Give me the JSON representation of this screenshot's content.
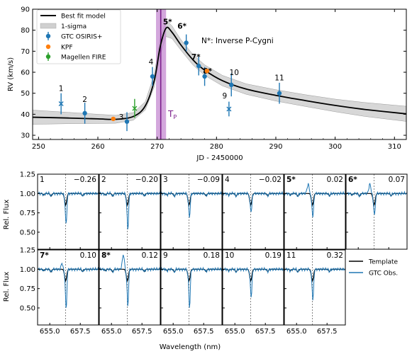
{
  "colors": {
    "model": "#000000",
    "band": "#d0d0d0",
    "gtc": "#1f77b4",
    "kpf": "#ff7f0e",
    "fire": "#2ca02c",
    "tp_band": "#c48ad0",
    "tp_line": "#7a1d8a",
    "template": "#000000"
  },
  "chart_data": [
    {
      "type": "scatter",
      "ylabel": "RV (km/s)",
      "xlabel": "JD - 2450000",
      "xlim": [
        249,
        312
      ],
      "ylim": [
        28,
        90
      ],
      "xticks": [
        250,
        260,
        270,
        280,
        290,
        300,
        310
      ],
      "yticks": [
        30,
        40,
        50,
        60,
        70,
        80,
        90
      ],
      "legend": {
        "placement": "top-left",
        "entries": [
          "Best fit model",
          "1-sigma",
          "GTC OSIRIS+",
          "KPF",
          "Magellen FIRE"
        ]
      },
      "annotation": "N*: Inverse P-Cygni",
      "tp_label": "T",
      "tp_subscript": "P",
      "tp": 270.6,
      "tp_band": [
        269.8,
        271.5
      ],
      "model": {
        "x": [
          249,
          255,
          260,
          263,
          266,
          268,
          269.5,
          270.5,
          271.5,
          272.5,
          274,
          276,
          278,
          281,
          285,
          290,
          295,
          300,
          305,
          312
        ],
        "y": [
          38.6,
          38.2,
          37.8,
          37.6,
          39.0,
          44.0,
          56.0,
          72.0,
          81.0,
          79.0,
          73.0,
          66.0,
          61.0,
          56.0,
          52.0,
          49.0,
          46.5,
          44.2,
          42.3,
          40.2
        ],
        "band_lo": [
          35.2,
          35.5,
          35.6,
          35.7,
          37.2,
          42.0,
          53.0,
          68.0,
          77.0,
          76.0,
          70.5,
          63.5,
          58.5,
          53.5,
          49.5,
          46.3,
          43.7,
          41.2,
          39.0,
          36.6
        ],
        "band_hi": [
          42.0,
          40.9,
          40.0,
          39.5,
          40.8,
          46.0,
          59.0,
          76.0,
          85.0,
          82.0,
          75.5,
          68.5,
          63.5,
          58.5,
          54.5,
          51.7,
          49.3,
          47.2,
          45.6,
          43.8
        ]
      },
      "series": [
        {
          "name": "GTC OSIRIS+",
          "points": [
            {
              "label": "1",
              "x": 253.8,
              "y": 45.0,
              "err": 5.0,
              "marker": "x"
            },
            {
              "label": "2",
              "x": 257.8,
              "y": 40.5,
              "err": 5.0,
              "marker": "o"
            },
            {
              "label": "3",
              "x": 264.9,
              "y": 36.5,
              "err": 4.5,
              "marker": "o"
            },
            {
              "label": "4",
              "x": 269.2,
              "y": 58.0,
              "err": 4.5,
              "marker": "o"
            },
            {
              "label": "5*",
              "x": 271.5,
              "y": 82.0,
              "err": 0,
              "marker": "none"
            },
            {
              "label": "6*",
              "x": 274.9,
              "y": 74.0,
              "err": 4.0,
              "marker": "o"
            },
            {
              "label": "7*",
              "x": 277.0,
              "y": 63.0,
              "err": 4.5,
              "marker": "o"
            },
            {
              "label": "8*",
              "x": 278.0,
              "y": 58.0,
              "err": 4.5,
              "marker": "o"
            },
            {
              "label": "9",
              "x": 282.1,
              "y": 42.5,
              "err": 3.5,
              "marker": "x"
            },
            {
              "label": "10",
              "x": 282.5,
              "y": 54.0,
              "err": 5.5,
              "marker": "o"
            },
            {
              "label": "11",
              "x": 290.6,
              "y": 50.0,
              "err": 5.0,
              "marker": "o"
            }
          ]
        },
        {
          "name": "KPF",
          "points": [
            {
              "x": 262.6,
              "y": 37.8,
              "err": 0,
              "marker": "o"
            },
            {
              "x": 278.4,
              "y": 60.6,
              "err": 0,
              "marker": "o"
            }
          ]
        },
        {
          "name": "Magellen FIRE",
          "points": [
            {
              "x": 266.2,
              "y": 42.8,
              "err": 4.5,
              "marker": "x"
            }
          ]
        }
      ]
    },
    {
      "type": "line",
      "ylabel": "Rel. Flux",
      "xlabel": "Wavelength (nm)",
      "xlim": [
        654.0,
        659.0
      ],
      "ylim": [
        0.28,
        1.25
      ],
      "xticks": [
        655.0,
        657.5
      ],
      "xtick_labels": [
        "655.0",
        "657.5"
      ],
      "yticks": [
        0.5,
        0.75,
        1.0,
        1.25
      ],
      "ytick_labels": [
        "0.50",
        "0.75",
        "1.00",
        "1.25"
      ],
      "line_center": 656.3,
      "legend": {
        "placement": "right",
        "entries": [
          "Template",
          "GTC Obs."
        ]
      },
      "panels": [
        {
          "label": "1",
          "phase": "−0.26",
          "depth": 0.57
        },
        {
          "label": "2",
          "phase": "−0.20",
          "depth": 0.5
        },
        {
          "label": "3",
          "phase": "−0.09",
          "depth": 0.68
        },
        {
          "label": "4",
          "phase": "−0.02",
          "depth": 0.75
        },
        {
          "label": "5*",
          "phase": "0.02",
          "depth": 0.68
        },
        {
          "label": "6*",
          "phase": "0.07",
          "depth": 0.7
        },
        {
          "label": "7*",
          "phase": "0.10",
          "depth": 0.45
        },
        {
          "label": "8*",
          "phase": "0.12",
          "depth": 0.5
        },
        {
          "label": "9",
          "phase": "0.18",
          "depth": 0.48
        },
        {
          "label": "10",
          "phase": "0.19",
          "depth": 0.62
        },
        {
          "label": "11",
          "phase": "0.32",
          "depth": 0.58
        }
      ]
    }
  ]
}
